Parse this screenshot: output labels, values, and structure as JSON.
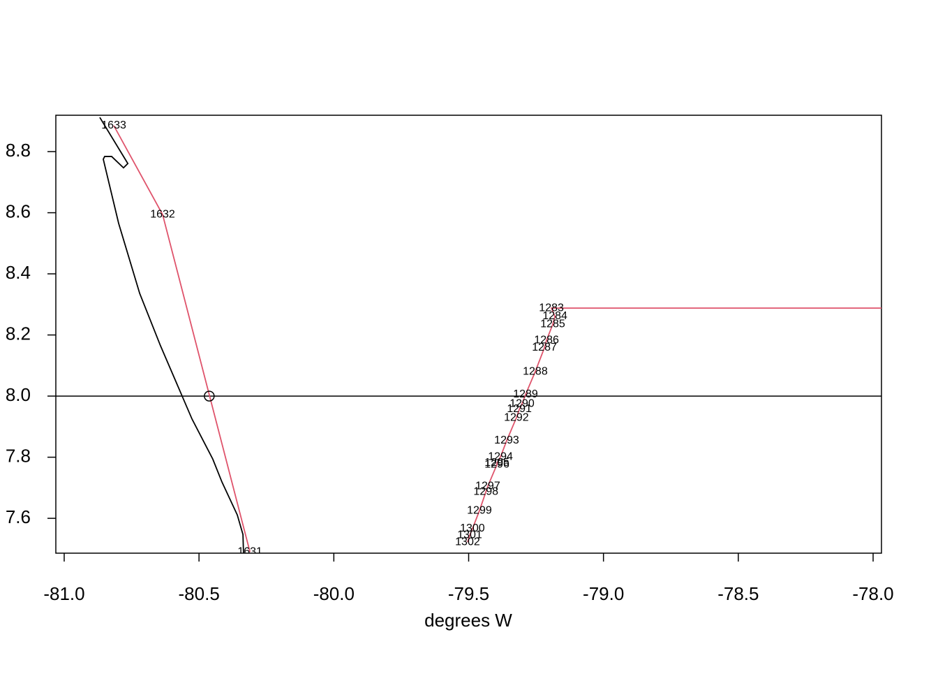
{
  "chart_data": {
    "type": "line",
    "xlabel": "degrees W",
    "xlim": [
      -81.031,
      -77.969
    ],
    "ylim": [
      7.486,
      8.919
    ],
    "xticks": [
      {
        "value": -81,
        "label": "-81.0"
      },
      {
        "value": -80.5,
        "label": "-80.5"
      },
      {
        "value": -80,
        "label": "-80.0"
      },
      {
        "value": -79.5,
        "label": "-79.5"
      },
      {
        "value": -79,
        "label": "-79.0"
      },
      {
        "value": -78.5,
        "label": "-78.5"
      },
      {
        "value": -78,
        "label": "-78.0"
      }
    ],
    "yticks": [
      7.6,
      7.8,
      {
        "value": 8,
        "label": "8.0"
      },
      8.2,
      8.4,
      8.6,
      8.8
    ],
    "hlines": [
      8
    ],
    "series": [
      {
        "color": "#000000",
        "x": [
          -80.868,
          -80.764,
          -80.78,
          -80.824,
          -80.85,
          -80.855,
          -80.798,
          -80.72,
          -80.643,
          -80.526,
          -80.449,
          -80.415,
          -80.358,
          -80.337,
          -80.335
        ],
        "values": [
          8.912,
          8.761,
          8.747,
          8.784,
          8.784,
          8.775,
          8.565,
          8.336,
          8.165,
          7.925,
          7.794,
          7.719,
          7.611,
          7.547,
          7.486
        ]
      },
      {
        "color": "#df536b",
        "x": [
          -80.816,
          -80.635,
          -80.311
        ],
        "values": [
          8.885,
          8.594,
          7.49
        ],
        "labels": [
          1633,
          1632,
          1631
        ]
      },
      {
        "color": "#df536b",
        "x": [
          -77.969,
          -79.193,
          -79.18,
          -79.188,
          -79.211,
          -79.219,
          -79.253,
          -79.289,
          -79.302,
          -79.312,
          -79.323,
          -79.359,
          -79.382,
          -79.395,
          -79.395,
          -79.429,
          -79.436,
          -79.46,
          -79.486,
          -79.496,
          -79.504
        ],
        "values": [
          8.288,
          8.288,
          8.261,
          8.235,
          8.183,
          8.158,
          8.08,
          8.005,
          7.975,
          7.957,
          7.929,
          7.854,
          7.801,
          7.781,
          7.776,
          7.705,
          7.687,
          7.625,
          7.566,
          7.545,
          7.522
        ],
        "labels": [
          null,
          1283,
          1284,
          1285,
          1286,
          1287,
          1288,
          1289,
          1290,
          1291,
          1292,
          1293,
          1294,
          1295,
          1296,
          1297,
          1298,
          1299,
          1300,
          1301,
          1302
        ]
      },
      {
        "color": "#000000",
        "marker": "circle",
        "line": false,
        "x": [
          -80.462
        ],
        "values": [
          8
        ]
      }
    ]
  }
}
